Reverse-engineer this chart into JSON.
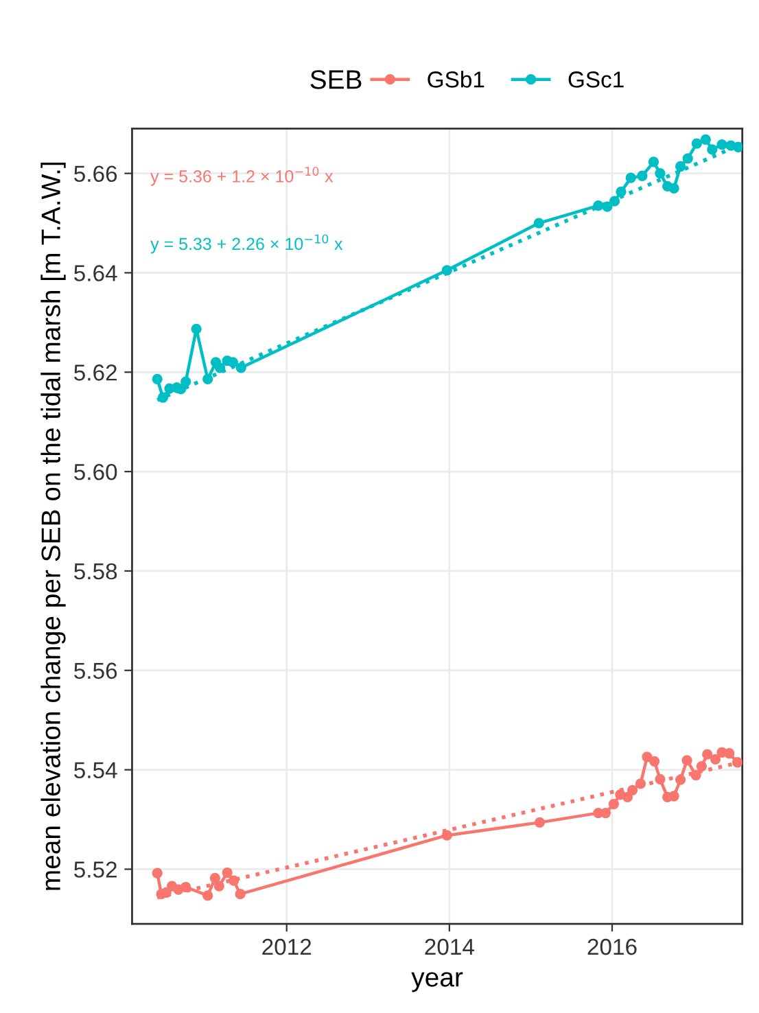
{
  "chart_data": {
    "type": "line",
    "xlabel": "year",
    "ylabel": "mean elevation change per SEB on the tidal marsh [m T.A.W.]",
    "legend_title": "SEB",
    "legend": "top",
    "grid": true,
    "marker": "circle",
    "line_style": "solid",
    "xlim": [
      2010.1,
      2017.6
    ],
    "xticks": [
      2012,
      2014,
      2016
    ],
    "ylim": [
      5.509,
      5.669
    ],
    "yticks": [
      5.52,
      5.54,
      5.56,
      5.58,
      {
        "value": 5.6,
        "label": "5.60"
      },
      5.62,
      5.64,
      5.66
    ],
    "annotations": [
      "y = 5.36 + 1.2 × 10$^{−10}$ x",
      "y = 5.33 + 2.26 × 10$^{−10}$ x"
    ],
    "series": [
      {
        "name": "GSb1",
        "color": "#f8766d",
        "x": [
          2010.41,
          2010.46,
          2010.52,
          2010.59,
          2010.67,
          2010.76,
          2011.03,
          2011.12,
          2011.17,
          2011.27,
          2011.35,
          2011.43,
          2013.97,
          2015.11,
          2015.83,
          2015.92,
          2016.02,
          2016.1,
          2016.19,
          2016.25,
          2016.35,
          2016.43,
          2016.52,
          2016.59,
          2016.68,
          2016.76,
          2016.84,
          2016.92,
          2017.03,
          2017.1,
          2017.17,
          2017.27,
          2017.35,
          2017.44,
          2017.54
        ],
        "values": [
          5.5192,
          5.515,
          5.5153,
          5.5166,
          5.5159,
          5.5164,
          5.5147,
          5.5182,
          5.5166,
          5.5193,
          5.5177,
          5.515,
          5.5268,
          5.5294,
          5.5313,
          5.5313,
          5.5331,
          5.535,
          5.5345,
          5.5359,
          5.5372,
          5.5426,
          5.5417,
          5.5381,
          5.5345,
          5.5347,
          5.538,
          5.5419,
          5.5389,
          5.5407,
          5.5431,
          5.5421,
          5.5435,
          5.5433,
          5.5415
        ]
      },
      {
        "name": "GSc1",
        "color": "#00bfc4",
        "x": [
          2010.41,
          2010.48,
          2010.56,
          2010.65,
          2010.7,
          2010.76,
          2010.89,
          2011.03,
          2011.13,
          2011.18,
          2011.27,
          2011.34,
          2011.44,
          2013.97,
          2015.1,
          2015.83,
          2015.94,
          2016.03,
          2016.11,
          2016.23,
          2016.37,
          2016.51,
          2016.59,
          2016.68,
          2016.76,
          2016.84,
          2016.93,
          2017.04,
          2017.15,
          2017.23,
          2017.35,
          2017.46,
          2017.55
        ],
        "values": [
          5.6186,
          5.6149,
          5.6167,
          5.6169,
          5.6166,
          5.6181,
          5.6287,
          5.6186,
          5.622,
          5.6209,
          5.6223,
          5.622,
          5.6209,
          5.6405,
          5.65,
          5.6535,
          5.6533,
          5.6544,
          5.6563,
          5.6591,
          5.6595,
          5.6623,
          5.66,
          5.6574,
          5.657,
          5.6614,
          5.663,
          5.666,
          5.6668,
          5.6648,
          5.6658,
          5.6656,
          5.6653
        ]
      },
      {
        "type": "line",
        "color": "#f8766d",
        "line_style": "dotted",
        "marker": "none",
        "x": [
          2010.41,
          2017.55
        ],
        "values": [
          5.5143,
          5.5414
        ]
      },
      {
        "type": "line",
        "color": "#00bfc4",
        "line_style": "dotted",
        "marker": "none",
        "x": [
          2010.41,
          2017.55
        ],
        "values": [
          5.6144,
          5.6656
        ]
      }
    ]
  }
}
